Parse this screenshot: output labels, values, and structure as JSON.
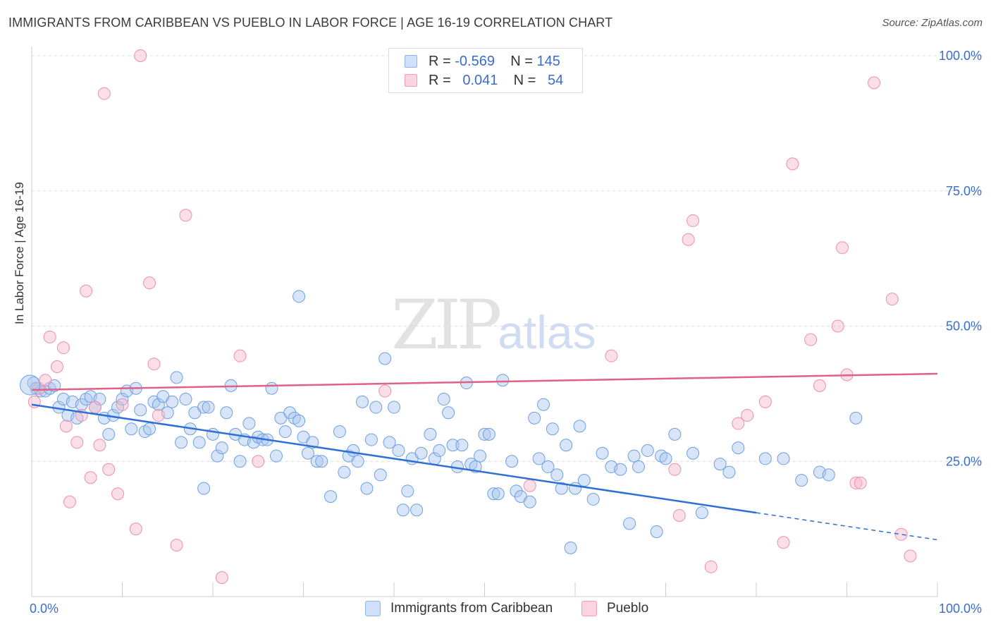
{
  "title": "IMMIGRANTS FROM CARIBBEAN VS PUEBLO IN LABOR FORCE | AGE 16-19 CORRELATION CHART",
  "source": "Source: ZipAtlas.com",
  "watermark": {
    "zip": "ZIP",
    "atlas": "atlas"
  },
  "legend": {
    "rows": [
      {
        "r_label": "R =",
        "r_value": "-0.569",
        "n_label": "N =",
        "n_value": "145",
        "color": "#a9c6f0"
      },
      {
        "r_label": "R =",
        "r_value": "0.041",
        "n_label": "N =",
        "n_value": "54",
        "color": "#f5b8cb"
      }
    ]
  },
  "bottom_legend": [
    {
      "label": "Immigrants from Caribbean",
      "color": "#a9c6f0"
    },
    {
      "label": "Pueblo",
      "color": "#f5b8cb"
    }
  ],
  "chart_data": {
    "type": "scatter",
    "ylabel": "In Labor Force | Age 16-19",
    "xlim": [
      0,
      100
    ],
    "ylim": [
      0,
      100
    ],
    "x_tick_labels": [
      "0.0%",
      "100.0%"
    ],
    "y_tick_labels": [
      "25.0%",
      "50.0%",
      "75.0%",
      "100.0%"
    ],
    "y_ticks": [
      25,
      50,
      75,
      100
    ],
    "grid": true,
    "series": [
      {
        "name": "Immigrants from Caribbean",
        "color": "#6f9fe0",
        "fill": "#a9c6f0",
        "trend": {
          "x0": 0,
          "y0": 35.5,
          "x1": 80,
          "y1": 15.5,
          "dash_to_x": 100,
          "dash_to_y": 10.5,
          "color": "#2e6fd6"
        },
        "points": [
          [
            0.2,
            39.5
          ],
          [
            0.5,
            38.5
          ],
          [
            1,
            38
          ],
          [
            1.5,
            38
          ],
          [
            2,
            38.5
          ],
          [
            2.5,
            39
          ],
          [
            3,
            35
          ],
          [
            3.5,
            36.5
          ],
          [
            4,
            33.5
          ],
          [
            4.5,
            36
          ],
          [
            5,
            33
          ],
          [
            5.5,
            35.5
          ],
          [
            6,
            36.5
          ],
          [
            6.5,
            37
          ],
          [
            7,
            35
          ],
          [
            7.5,
            36.5
          ],
          [
            8,
            33
          ],
          [
            8.5,
            30
          ],
          [
            9,
            33.5
          ],
          [
            9.5,
            35
          ],
          [
            10,
            36.5
          ],
          [
            10.5,
            38
          ],
          [
            11,
            31
          ],
          [
            11.5,
            38.5
          ],
          [
            12,
            34.5
          ],
          [
            12.5,
            30.5
          ],
          [
            13,
            31
          ],
          [
            13.5,
            36
          ],
          [
            14,
            35.5
          ],
          [
            14.5,
            37
          ],
          [
            15,
            34
          ],
          [
            15.5,
            36
          ],
          [
            16,
            40.5
          ],
          [
            16.5,
            28.5
          ],
          [
            17,
            36.5
          ],
          [
            17.5,
            31
          ],
          [
            18,
            34
          ],
          [
            18.5,
            28.5
          ],
          [
            19,
            35
          ],
          [
            19.5,
            35
          ],
          [
            19,
            20
          ],
          [
            20,
            30
          ],
          [
            20.5,
            26
          ],
          [
            21,
            27.5
          ],
          [
            21.5,
            34
          ],
          [
            22,
            39
          ],
          [
            22.5,
            30
          ],
          [
            23,
            25
          ],
          [
            23.5,
            29
          ],
          [
            24,
            32
          ],
          [
            24.5,
            28.5
          ],
          [
            25,
            29.5
          ],
          [
            25.5,
            29
          ],
          [
            26,
            29
          ],
          [
            26.5,
            38.5
          ],
          [
            27,
            26
          ],
          [
            27.5,
            33
          ],
          [
            28,
            30.5
          ],
          [
            28.5,
            34
          ],
          [
            29,
            33
          ],
          [
            29.5,
            32.5
          ],
          [
            30,
            29.5
          ],
          [
            30.5,
            26.5
          ],
          [
            31,
            28.5
          ],
          [
            31.5,
            25
          ],
          [
            32,
            25
          ],
          [
            33,
            18.5
          ],
          [
            34,
            30.5
          ],
          [
            34.5,
            23
          ],
          [
            35,
            26
          ],
          [
            35.5,
            27
          ],
          [
            36,
            25
          ],
          [
            36.5,
            36
          ],
          [
            37,
            20
          ],
          [
            37.5,
            29
          ],
          [
            38,
            35
          ],
          [
            38.5,
            22.5
          ],
          [
            39,
            44
          ],
          [
            39.5,
            28.5
          ],
          [
            40,
            35
          ],
          [
            40.5,
            27
          ],
          [
            41,
            16
          ],
          [
            41.5,
            19.5
          ],
          [
            42,
            25.5
          ],
          [
            42.5,
            16
          ],
          [
            43,
            26.5
          ],
          [
            44,
            30
          ],
          [
            44.5,
            25.5
          ],
          [
            45,
            27
          ],
          [
            45.5,
            36.5
          ],
          [
            46,
            34
          ],
          [
            46.5,
            28
          ],
          [
            47,
            24
          ],
          [
            47.5,
            28
          ],
          [
            48,
            39.5
          ],
          [
            48.5,
            24.5
          ],
          [
            49,
            24
          ],
          [
            49.5,
            26
          ],
          [
            50,
            30
          ],
          [
            50.5,
            30
          ],
          [
            51,
            19
          ],
          [
            51.5,
            19
          ],
          [
            52,
            40
          ],
          [
            53,
            25
          ],
          [
            53.5,
            19.5
          ],
          [
            54,
            18.5
          ],
          [
            55,
            17.5
          ],
          [
            55.5,
            33
          ],
          [
            56,
            25.5
          ],
          [
            56.5,
            35.5
          ],
          [
            57,
            24
          ],
          [
            57.5,
            31
          ],
          [
            58,
            22.5
          ],
          [
            58.5,
            20
          ],
          [
            59,
            28
          ],
          [
            59.5,
            9
          ],
          [
            60,
            20
          ],
          [
            60.5,
            31.5
          ],
          [
            61,
            21.5
          ],
          [
            62,
            18
          ],
          [
            63,
            26.5
          ],
          [
            64,
            24
          ],
          [
            65,
            23.5
          ],
          [
            66,
            13.5
          ],
          [
            66.5,
            26
          ],
          [
            67,
            24
          ],
          [
            68,
            27
          ],
          [
            69,
            12
          ],
          [
            69.5,
            26
          ],
          [
            70,
            25.5
          ],
          [
            71,
            30
          ],
          [
            73,
            26.5
          ],
          [
            74,
            15.5
          ],
          [
            76,
            24.5
          ],
          [
            77,
            23
          ],
          [
            78,
            27.5
          ],
          [
            81,
            25.5
          ],
          [
            83,
            25.5
          ],
          [
            85,
            21.5
          ],
          [
            87,
            23
          ],
          [
            88,
            22.5
          ],
          [
            91,
            33
          ],
          [
            29.5,
            55.5
          ]
        ]
      },
      {
        "name": "Pueblo",
        "color": "#ee8fae",
        "fill": "#f5b8cb",
        "trend": {
          "x0": 0,
          "y0": 38.2,
          "x1": 100,
          "y1": 41.2,
          "color": "#e06088"
        },
        "points": [
          [
            0.3,
            36
          ],
          [
            0.8,
            38.5
          ],
          [
            1.5,
            40
          ],
          [
            2,
            48
          ],
          [
            2.8,
            42.5
          ],
          [
            3.5,
            46
          ],
          [
            3.8,
            31.5
          ],
          [
            4.2,
            17.5
          ],
          [
            5,
            28.5
          ],
          [
            5.5,
            33.5
          ],
          [
            6,
            56.5
          ],
          [
            6.5,
            22
          ],
          [
            7,
            35
          ],
          [
            7.5,
            28
          ],
          [
            8,
            93
          ],
          [
            8.5,
            23.5
          ],
          [
            9.5,
            19
          ],
          [
            10,
            35.5
          ],
          [
            11.5,
            12.5
          ],
          [
            12,
            100
          ],
          [
            13,
            58
          ],
          [
            13.5,
            43
          ],
          [
            14,
            33.5
          ],
          [
            16,
            9.5
          ],
          [
            17,
            70.5
          ],
          [
            21,
            3.5
          ],
          [
            23,
            44.5
          ],
          [
            25,
            25
          ],
          [
            39,
            38
          ],
          [
            54.5,
            97
          ],
          [
            55,
            20.5
          ],
          [
            64,
            44.5
          ],
          [
            71,
            23.5
          ],
          [
            71.5,
            15
          ],
          [
            72.5,
            66
          ],
          [
            73,
            69.5
          ],
          [
            75,
            5.5
          ],
          [
            78,
            32
          ],
          [
            79,
            33.5
          ],
          [
            81,
            36
          ],
          [
            83,
            10
          ],
          [
            84,
            80
          ],
          [
            86,
            47.5
          ],
          [
            87,
            39
          ],
          [
            89,
            50
          ],
          [
            89.5,
            64.5
          ],
          [
            90,
            41
          ],
          [
            91,
            21
          ],
          [
            91.5,
            21
          ],
          [
            93,
            95
          ],
          [
            95,
            55
          ],
          [
            96,
            11.5
          ],
          [
            97,
            7.5
          ]
        ]
      }
    ]
  }
}
